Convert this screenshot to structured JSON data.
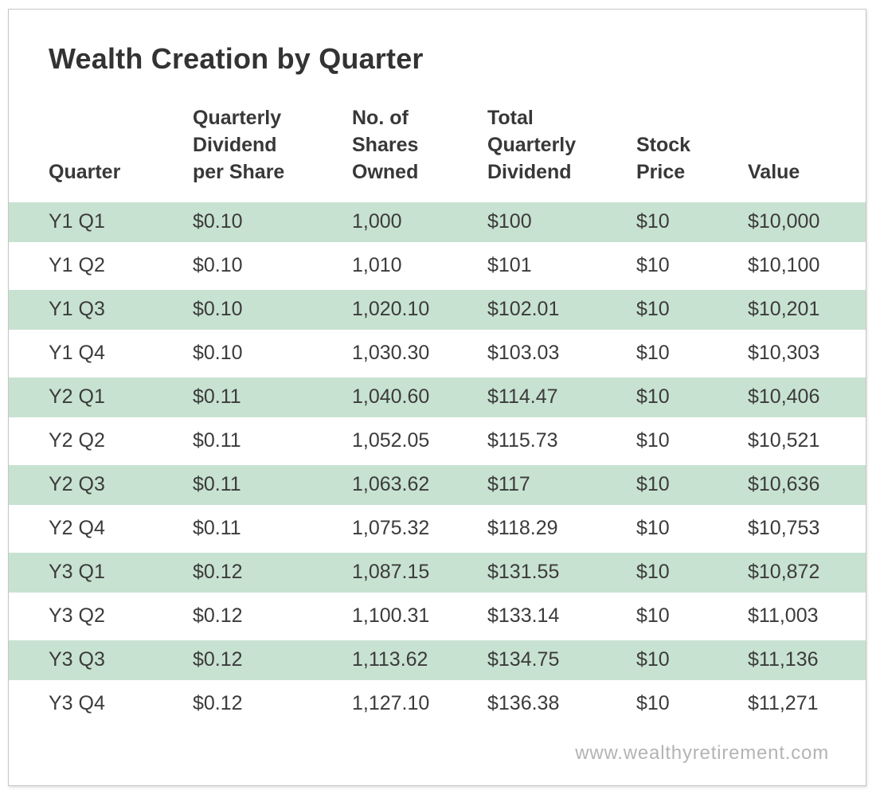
{
  "page": {
    "title": "Wealth Creation by Quarter",
    "footer": "www.wealthyretirement.com"
  },
  "chart_data": {
    "type": "table",
    "title": "Wealth Creation by Quarter",
    "columns": [
      "Quarter",
      "Quarterly Dividend per Share",
      "No. of Shares Owned",
      "Total Quarterly Dividend",
      "Stock Price",
      "Value"
    ],
    "column_headers_display": [
      "Quarter",
      "Quarterly\nDividend\nper Share",
      "No. of\nShares\nOwned",
      "Total\nQuarterly\nDividend",
      "Stock\nPrice",
      "Value"
    ],
    "rows": [
      [
        "Y1 Q1",
        "$0.10",
        "1,000",
        "$100",
        "$10",
        "$10,000"
      ],
      [
        "Y1 Q2",
        "$0.10",
        "1,010",
        "$101",
        "$10",
        "$10,100"
      ],
      [
        "Y1 Q3",
        "$0.10",
        "1,020.10",
        "$102.01",
        "$10",
        "$10,201"
      ],
      [
        "Y1 Q4",
        "$0.10",
        "1,030.30",
        "$103.03",
        "$10",
        "$10,303"
      ],
      [
        "Y2 Q1",
        "$0.11",
        "1,040.60",
        "$114.47",
        "$10",
        "$10,406"
      ],
      [
        "Y2 Q2",
        "$0.11",
        "1,052.05",
        "$115.73",
        "$10",
        "$10,521"
      ],
      [
        "Y2 Q3",
        "$0.11",
        "1,063.62",
        "$117",
        "$10",
        "$10,636"
      ],
      [
        "Y2 Q4",
        "$0.11",
        "1,075.32",
        "$118.29",
        "$10",
        "$10,753"
      ],
      [
        "Y3 Q1",
        "$0.12",
        "1,087.15",
        "$131.55",
        "$10",
        "$10,872"
      ],
      [
        "Y3 Q2",
        "$0.12",
        "1,100.31",
        "$133.14",
        "$10",
        "$11,003"
      ],
      [
        "Y3 Q3",
        "$0.12",
        "1,113.62",
        "$134.75",
        "$10",
        "$11,136"
      ],
      [
        "Y3 Q4",
        "$0.12",
        "1,127.10",
        "$136.38",
        "$10",
        "$11,271"
      ]
    ],
    "layout": {
      "stripe_pattern": "odd rows highlighted starting with first data row",
      "grid": false,
      "source_position": "bottom-right"
    },
    "colors": {
      "row_stripe_green": "#c8e2d1",
      "body_text": "#3b3b3b",
      "title_text": "#333333",
      "footer_text": "#b4b4b4",
      "panel_border": "#c6c6c6",
      "background": "#ffffff"
    }
  }
}
